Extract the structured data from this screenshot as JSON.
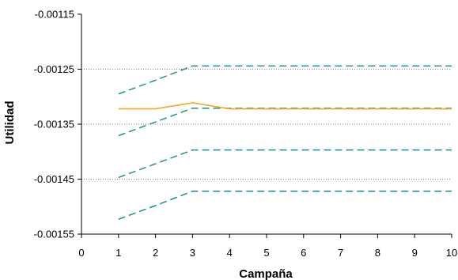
{
  "chart_data": {
    "type": "line",
    "title": "",
    "xlabel": "Campaña",
    "ylabel": "Utilidad",
    "xlim": [
      0,
      10
    ],
    "ylim": [
      -0.00155,
      -0.00115
    ],
    "x_ticks": [
      0,
      1,
      2,
      3,
      4,
      5,
      6,
      7,
      8,
      9,
      10
    ],
    "y_ticks": [
      -0.00115,
      -0.00125,
      -0.00135,
      -0.00145,
      -0.00155
    ],
    "y_tick_labels": [
      "-0.00115",
      "-0.00125",
      "-0.00135",
      "-0.00145",
      "-0.00155"
    ],
    "grid": "horizontal dotted",
    "legend": "none",
    "x": [
      1,
      2,
      3,
      4,
      5,
      6,
      7,
      8,
      9,
      10
    ],
    "series": [
      {
        "color": "#f5a623",
        "style": "solid",
        "values": [
          -0.001322,
          -0.001322,
          -0.001311,
          -0.001322,
          -0.001322,
          -0.001322,
          -0.001322,
          -0.001322,
          -0.001322,
          -0.001322
        ]
      },
      {
        "color": "#17918f",
        "style": "dashed",
        "values": [
          -0.001295,
          -0.00127,
          -0.001244,
          -0.001244,
          -0.001244,
          -0.001244,
          -0.001244,
          -0.001244,
          -0.001244,
          -0.001244
        ]
      },
      {
        "color": "#17918f",
        "style": "dashed",
        "values": [
          -0.001371,
          -0.001346,
          -0.001321,
          -0.001321,
          -0.001321,
          -0.001321,
          -0.001321,
          -0.001321,
          -0.001321,
          -0.001321
        ]
      },
      {
        "color": "#17918f",
        "style": "dashed",
        "values": [
          -0.001447,
          -0.001422,
          -0.001397,
          -0.001397,
          -0.001397,
          -0.001397,
          -0.001397,
          -0.001397,
          -0.001397,
          -0.001397
        ]
      },
      {
        "color": "#17918f",
        "style": "dashed",
        "values": [
          -0.001523,
          -0.001498,
          -0.001472,
          -0.001472,
          -0.001472,
          -0.001472,
          -0.001472,
          -0.001472,
          -0.001472,
          -0.001472
        ]
      }
    ]
  }
}
